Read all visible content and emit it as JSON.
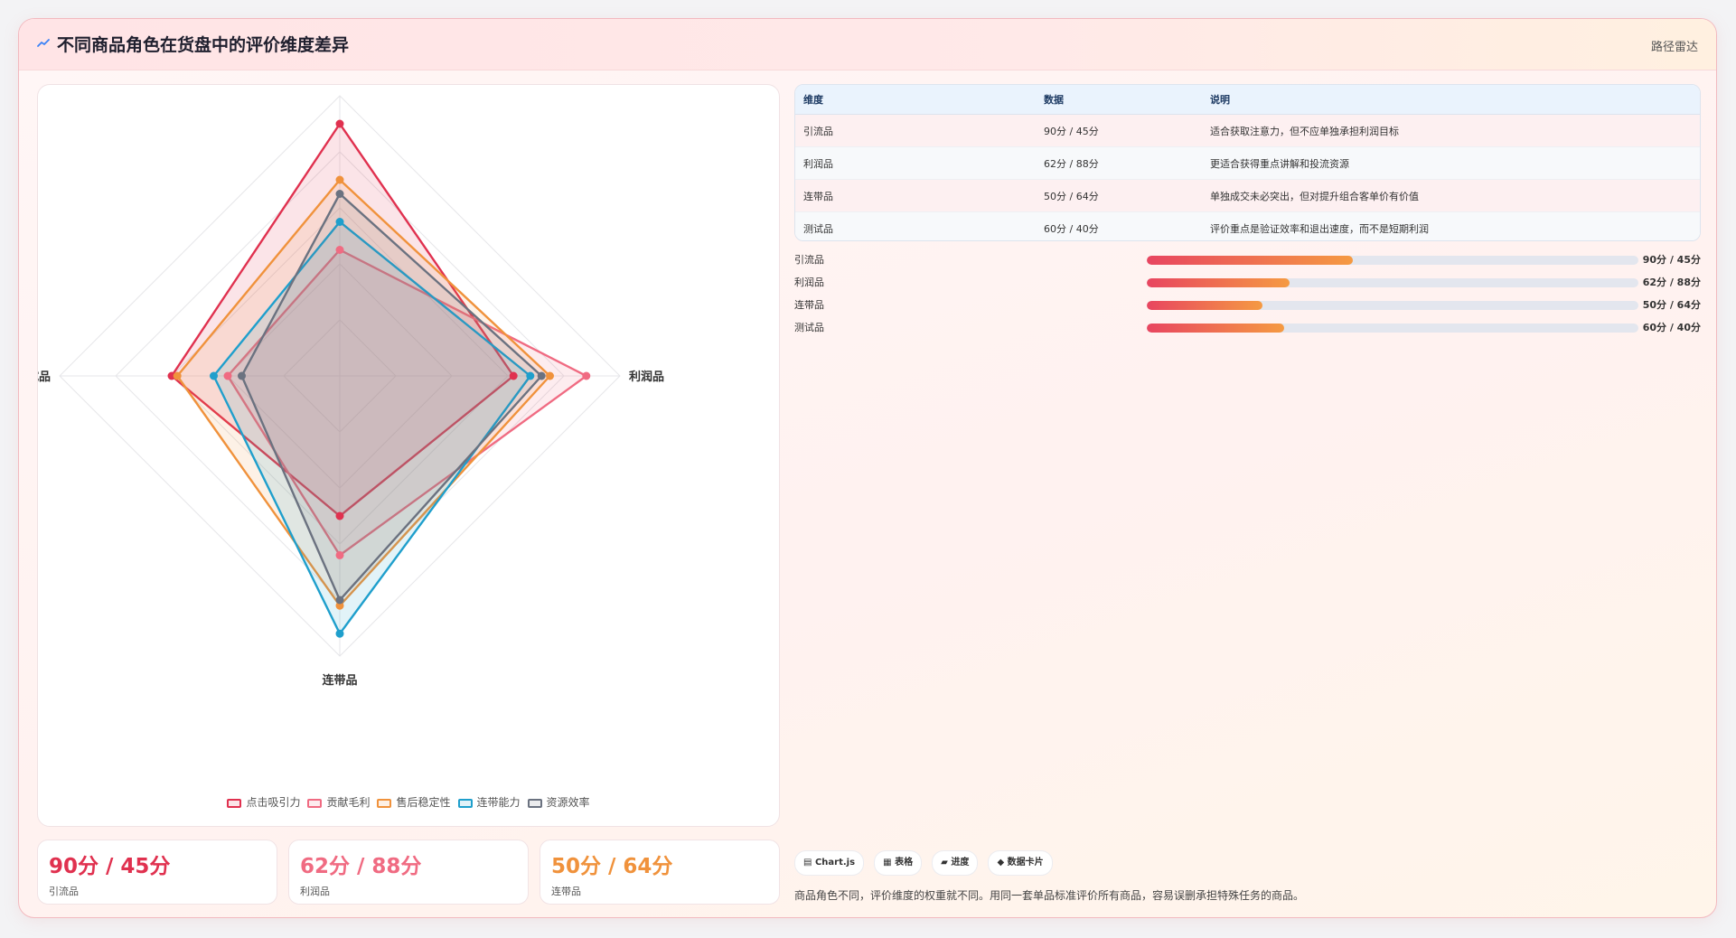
{
  "header": {
    "title": "不同商品角色在货盘中的评价维度差异",
    "path_label": "路径雷达"
  },
  "chart_data": {
    "type": "radar",
    "axes": [
      "引流品",
      "利润品",
      "连带品",
      "测试品"
    ],
    "r_range": [
      0,
      100
    ],
    "grid": true,
    "legend_position": "bottom",
    "series": [
      {
        "name": "点击吸引力",
        "color": "#e0314f",
        "values": [
          90,
          62,
          50,
          60
        ]
      },
      {
        "name": "贡献毛利",
        "color": "#f06b82",
        "values": [
          45,
          88,
          64,
          40
        ]
      },
      {
        "name": "售后稳定性",
        "color": "#f0923c",
        "values": [
          70,
          75,
          82,
          58
        ]
      },
      {
        "name": "连带能力",
        "color": "#1f9fcc",
        "values": [
          55,
          68,
          92,
          45
        ]
      },
      {
        "name": "资源效率",
        "color": "#6b7280",
        "values": [
          65,
          72,
          80,
          35
        ]
      }
    ]
  },
  "table": {
    "headers": [
      "维度",
      "数据",
      "说明"
    ],
    "rows": [
      [
        "引流品",
        "90分 / 45分",
        "适合获取注意力，但不应单独承担利润目标"
      ],
      [
        "利润品",
        "62分 / 88分",
        "更适合获得重点讲解和投流资源"
      ],
      [
        "连带品",
        "50分 / 64分",
        "单独成交未必突出，但对提升组合客单价有价值"
      ],
      [
        "测试品",
        "60分 / 40分",
        "评价重点是验证效率和退出速度，而不是短期利润"
      ]
    ]
  },
  "progress": [
    {
      "label": "引流品",
      "value_text": "90分 / 45分",
      "fraction": 0.42
    },
    {
      "label": "利润品",
      "value_text": "62分 / 88分",
      "fraction": 0.29
    },
    {
      "label": "连带品",
      "value_text": "50分 / 64分",
      "fraction": 0.235
    },
    {
      "label": "测试品",
      "value_text": "60分 / 40分",
      "fraction": 0.28
    }
  ],
  "stats": [
    {
      "value": "90分 / 45分",
      "label": "引流品",
      "color": "#e0314f"
    },
    {
      "value": "62分 / 88分",
      "label": "利润品",
      "color": "#f06b82"
    },
    {
      "value": "50分 / 64分",
      "label": "连带品",
      "color": "#f0923c"
    }
  ],
  "tags": [
    "Chart.js",
    "表格",
    "进度",
    "数据卡片"
  ],
  "tag_icons": [
    "chart-icon",
    "table-icon",
    "progress-icon",
    "card-icon"
  ],
  "footnote": "商品角色不同，评价维度的权重就不同。用同一套单品标准评价所有商品，容易误删承担特殊任务的商品。"
}
